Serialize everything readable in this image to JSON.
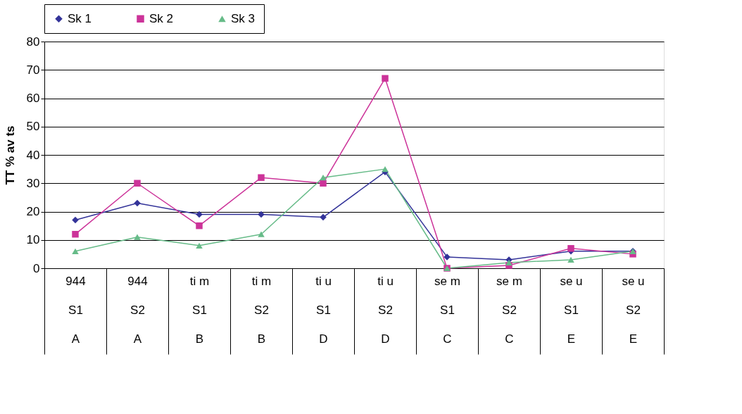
{
  "chart_data": {
    "type": "line",
    "ylabel": "TT % av ts",
    "categories": [
      "944\nS1\nA",
      "944\nS2\nA",
      "ti m\nS1\nB",
      "ti m\nS2\nB",
      "ti u\nS1\nD",
      "ti u\nS2\nD",
      "se m\nS1\nC",
      "se m\nS2\nC",
      "se u\nS1\nE",
      "se u\nS2\nE"
    ],
    "series": [
      {
        "name": "Sk 1",
        "color": "#333399",
        "marker": "diamond",
        "values": [
          17,
          23,
          19,
          19,
          18,
          34,
          4,
          3,
          6,
          6
        ]
      },
      {
        "name": "Sk 2",
        "color": "#cc3399",
        "marker": "square",
        "values": [
          12,
          30,
          15,
          32,
          30,
          67,
          0,
          1,
          7,
          5
        ]
      },
      {
        "name": "Sk 3",
        "color": "#66bb88",
        "marker": "triangle",
        "values": [
          6,
          11,
          8,
          12,
          32,
          35,
          0,
          2,
          3,
          6
        ]
      }
    ],
    "ylim": [
      0,
      80
    ],
    "yticks": [
      0,
      10,
      20,
      30,
      40,
      50,
      60,
      70,
      80
    ],
    "grid": "y",
    "legend": "top"
  }
}
